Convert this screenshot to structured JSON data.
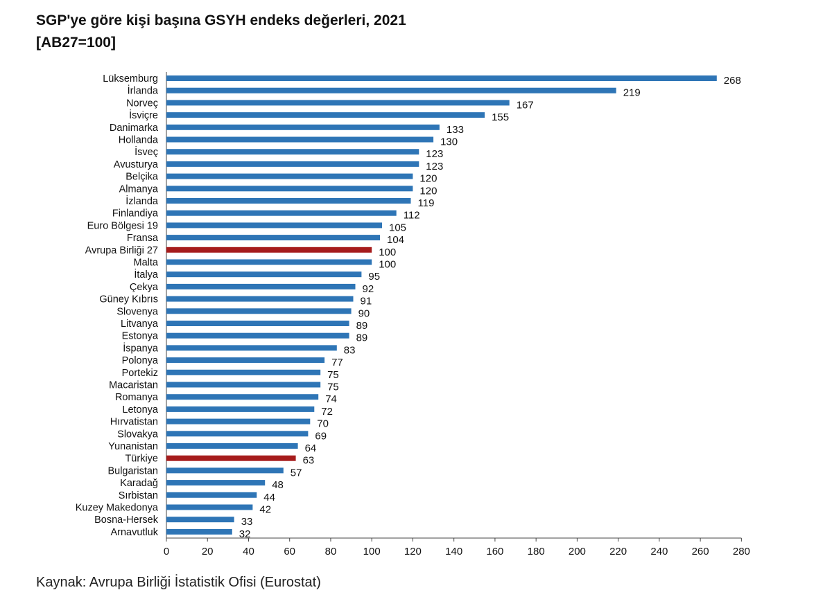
{
  "header": {
    "title": "SGP'ye göre kişi başına GSYH endeks değerleri, 2021",
    "subtitle": "[AB27=100]"
  },
  "footer": {
    "source": "Kaynak: Avrupa Birliği İstatistik Ofisi (Eurostat)"
  },
  "colors": {
    "bar": "#2e75b6",
    "highlight": "#a61c1c",
    "axis": "#444444"
  },
  "chart_data": {
    "type": "bar",
    "orientation": "horizontal",
    "title": "SGP'ye göre kişi başına GSYH endeks değerleri, 2021",
    "subtitle": "[AB27=100]",
    "xlim": [
      0,
      280
    ],
    "xticks": [
      0,
      20,
      40,
      60,
      80,
      100,
      120,
      140,
      160,
      180,
      200,
      220,
      240,
      260,
      280
    ],
    "grid": false,
    "categories": [
      "Lüksemburg",
      "İrlanda",
      "Norveç",
      "İsviçre",
      "Danimarka",
      "Hollanda",
      "İsveç",
      "Avusturya",
      "Belçika",
      "Almanya",
      "İzlanda",
      "Finlandiya",
      "Euro Bölgesi 19",
      "Fransa",
      "Avrupa Birliği 27",
      "Malta",
      "İtalya",
      "Çekya",
      "Güney Kıbrıs",
      "Slovenya",
      "Litvanya",
      "Estonya",
      "İspanya",
      "Polonya",
      "Portekiz",
      "Macaristan",
      "Romanya",
      "Letonya",
      "Hırvatistan",
      "Slovakya",
      "Yunanistan",
      "Türkiye",
      "Bulgaristan",
      "Karadağ",
      "Sırbistan",
      "Kuzey Makedonya",
      "Bosna-Hersek",
      "Arnavutluk"
    ],
    "values": [
      268,
      219,
      167,
      155,
      133,
      130,
      123,
      123,
      120,
      120,
      119,
      112,
      105,
      104,
      100,
      100,
      95,
      92,
      91,
      90,
      89,
      89,
      83,
      77,
      75,
      75,
      74,
      72,
      70,
      69,
      64,
      63,
      57,
      48,
      44,
      42,
      33,
      32
    ],
    "highlighted": [
      "Avrupa Birliği 27",
      "Türkiye"
    ]
  }
}
